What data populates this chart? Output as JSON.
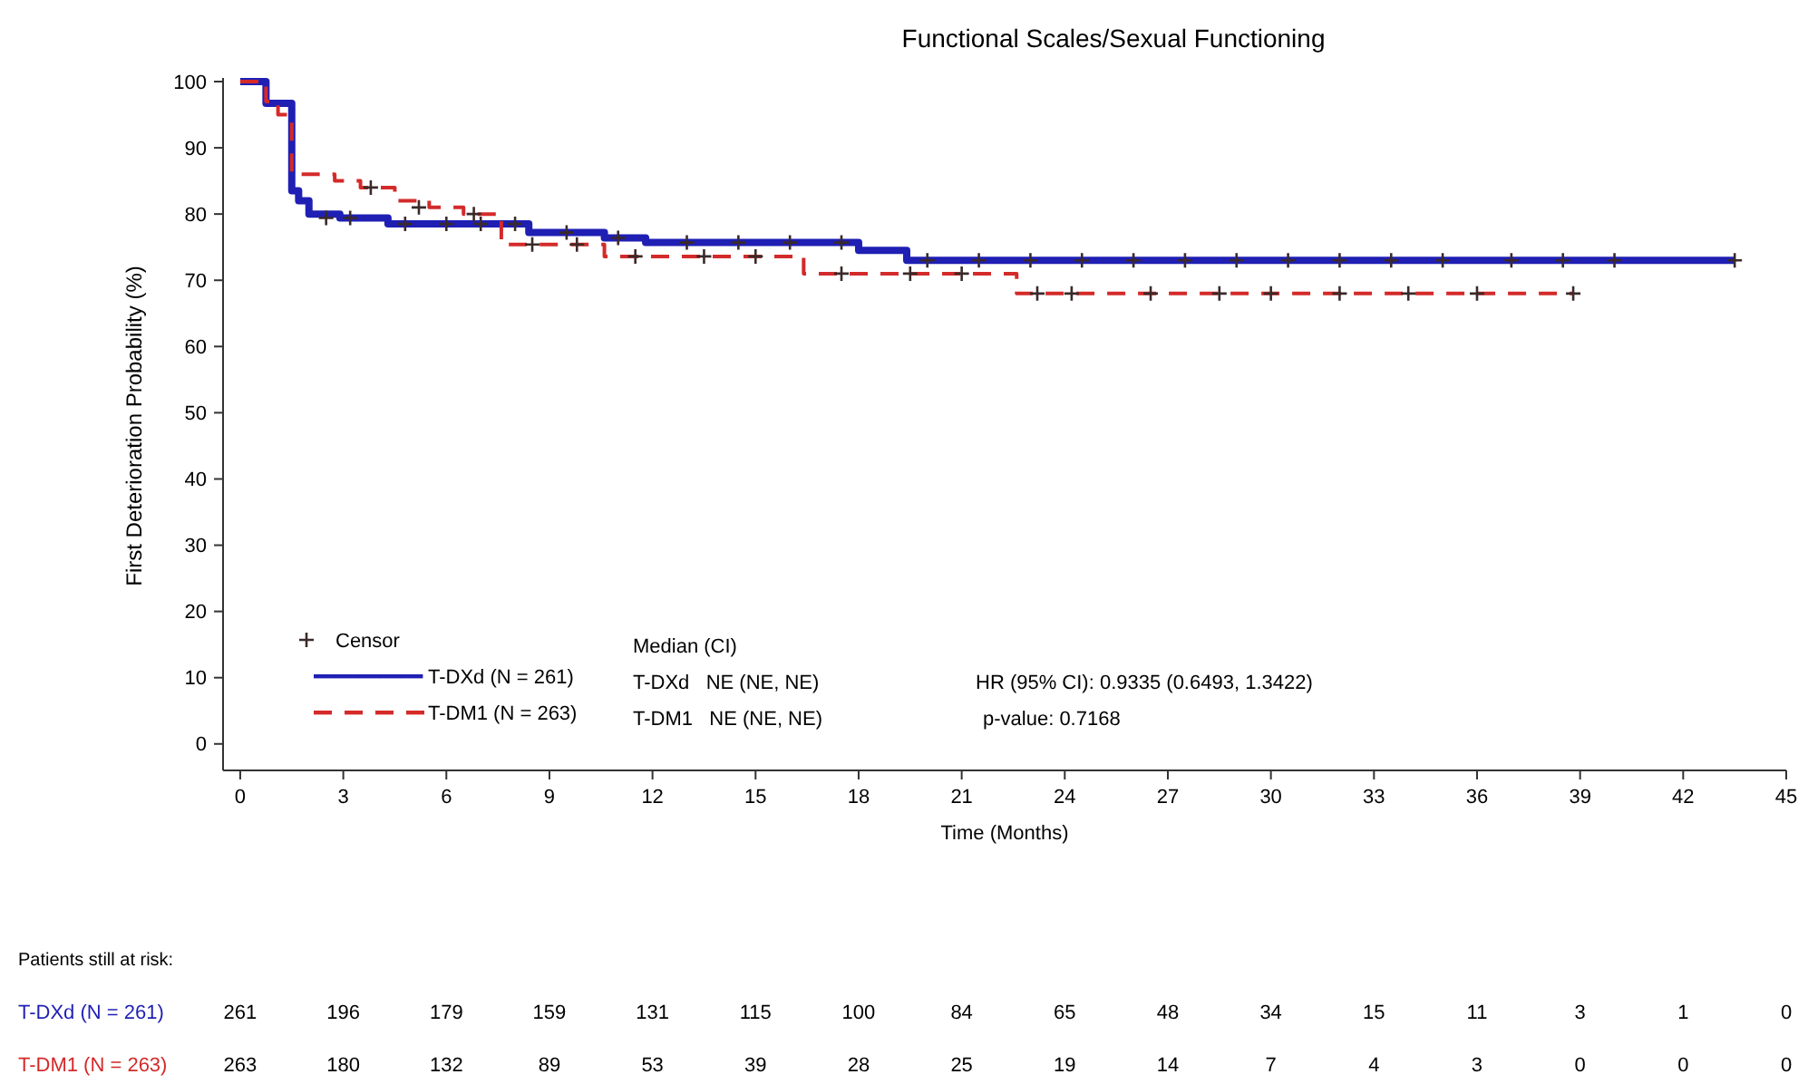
{
  "chart_data": {
    "type": "step",
    "title": "Functional Scales/Sexual Functioning",
    "xlabel": "Time (Months)",
    "ylabel": "First Deterioration Probability (%)",
    "xlim": [
      -0.5,
      45
    ],
    "xticks": [
      0,
      3,
      6,
      9,
      12,
      15,
      18,
      21,
      24,
      27,
      30,
      33,
      36,
      39,
      42,
      45
    ],
    "ylim": [
      -4,
      100
    ],
    "yticks": [
      0,
      10,
      20,
      30,
      40,
      50,
      60,
      70,
      80,
      90,
      100
    ],
    "legend": "bottom left",
    "marker": "none",
    "series": [
      {
        "name": "T-DXd (N = 261)",
        "color": "#1f1fb4",
        "line_style": "solid",
        "x": [
          0,
          0.75,
          1.5,
          1.7,
          2.0,
          2.9,
          4.3,
          8.4,
          10.6,
          11.8,
          18,
          19.4,
          43.5
        ],
        "values": [
          100,
          96.7,
          83.5,
          82,
          80,
          79.4,
          78.5,
          77.2,
          76.4,
          75.7,
          74.5,
          73,
          73
        ]
      },
      {
        "name": "T-DM1 (N = 263)",
        "color": "#d42a2a",
        "line_style": "dashed",
        "x": [
          0,
          0.75,
          1.1,
          1.5,
          2.75,
          3.5,
          4.5,
          5.5,
          6.5,
          7.6,
          10.6,
          16.4,
          22.6,
          38.8
        ],
        "values": [
          100,
          97,
          95,
          86,
          85,
          84,
          82,
          81,
          80,
          75.4,
          73.6,
          71,
          68,
          68
        ]
      },
      {
        "name": "Censor",
        "type": "scatter",
        "marker": "cross",
        "color": "#3b2a2a",
        "x": [
          2.5,
          3.2,
          4.8,
          6.0,
          7.0,
          8.0,
          9.5,
          11,
          13,
          14.5,
          16,
          17.5,
          20,
          21.5,
          23,
          24.5,
          26,
          27.5,
          29,
          30.5,
          32,
          33.5,
          35,
          37,
          38.5,
          40,
          43.5,
          3.8,
          5.2,
          6.8,
          8.5,
          9.8,
          11.5,
          13.5,
          15,
          17.5,
          19.5,
          21,
          23.2,
          24.2,
          26.5,
          28.5,
          30,
          32,
          34,
          36,
          38.8
        ],
        "values": [
          79.4,
          79.4,
          78.5,
          78.5,
          78.5,
          78.5,
          77.2,
          76.4,
          75.7,
          75.7,
          75.7,
          75.7,
          73,
          73,
          73,
          73,
          73,
          73,
          73,
          73,
          73,
          73,
          73,
          73,
          73,
          73,
          73,
          84,
          81,
          80,
          75.4,
          75.4,
          73.6,
          73.6,
          73.6,
          71,
          71,
          71,
          68,
          68,
          68,
          68,
          68,
          68,
          68,
          68,
          68
        ]
      }
    ],
    "annotations": [
      "Median (CI)",
      "T-DXd   NE (NE, NE)",
      "T-DM1   NE (NE, NE)",
      "HR (95% CI): 0.9335 (0.6493, 1.3422)",
      "p-value: 0.7168",
      "Patients still at risk:",
      "T-DXd (N = 261)",
      "261 196 179 159 131 115 100 84 65 48 34 15 11 3 1 0",
      "T-DM1 (N = 263)",
      "263 180 132 89 53 39 28 25 19 14 7 4 3 0 0 0"
    ]
  }
}
